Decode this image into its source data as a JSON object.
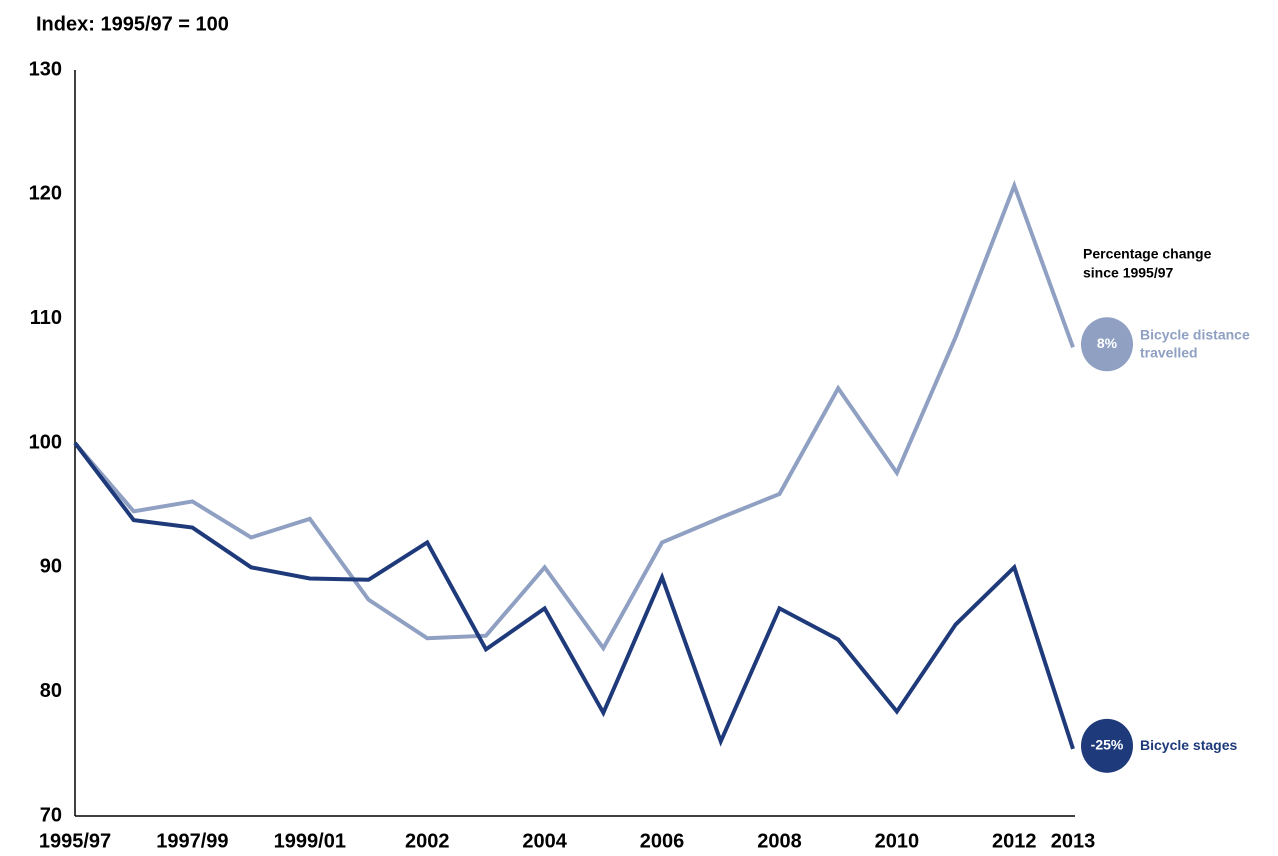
{
  "chart_data": {
    "type": "line",
    "y_axis_label": "Index: 1995/97 = 100",
    "categories": [
      "1995/97",
      null,
      "1997/99",
      null,
      "1999/01",
      null,
      "2002",
      null,
      "2004",
      null,
      "2006",
      null,
      "2008",
      null,
      "2010",
      null,
      "2012",
      "2013"
    ],
    "series": [
      {
        "name": "Bicycle distance travelled",
        "color": "#8fa0c3",
        "change_label": "8%",
        "values": [
          100,
          94.5,
          95.3,
          92.4,
          93.9,
          87.4,
          84.3,
          84.5,
          90.0,
          83.5,
          92.0,
          94.0,
          95.9,
          104.4,
          97.6,
          108.5,
          120.7,
          107.7
        ]
      },
      {
        "name": "Bicycle stages",
        "color": "#1f3a7a",
        "change_label": "-25%",
        "values": [
          100,
          93.8,
          93.2,
          90.0,
          89.1,
          89.0,
          92.0,
          83.4,
          86.7,
          78.3,
          89.2,
          76.0,
          86.7,
          84.2,
          78.4,
          85.4,
          90.0,
          75.4
        ]
      }
    ],
    "annotation": [
      "Percentage change",
      "since 1995/97"
    ],
    "ylim": [
      70,
      130
    ],
    "yticks": [
      70,
      80,
      90,
      100,
      110,
      120,
      130
    ],
    "grid": false
  }
}
